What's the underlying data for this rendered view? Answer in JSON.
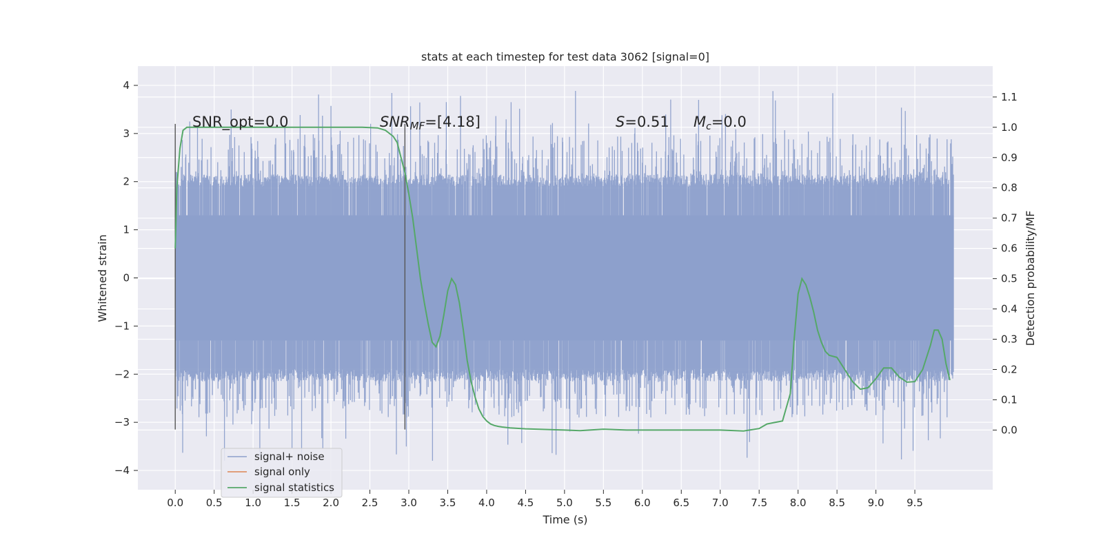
{
  "chart_data": {
    "type": "line",
    "title": "stats at each timestep for test data 3062 [signal=0]",
    "xlabel": "Time (s)",
    "ylabel": "Whitened strain",
    "y2label": "Detection probability/MF",
    "xlim": [
      -0.48,
      10.5
    ],
    "ylim": [
      -4.4,
      4.4
    ],
    "y2lim": [
      -0.197,
      1.202
    ],
    "x_ticks": [
      "0.0",
      "0.5",
      "1.0",
      "1.5",
      "2.0",
      "2.5",
      "3.0",
      "3.5",
      "4.0",
      "4.5",
      "5.0",
      "5.5",
      "6.0",
      "6.5",
      "7.0",
      "7.5",
      "8.0",
      "8.5",
      "9.0",
      "9.5"
    ],
    "y_ticks": [
      "4",
      "3",
      "2",
      "1",
      "0",
      "−1",
      "−2",
      "−3",
      "−4"
    ],
    "y2_ticks": [
      "1.1",
      "1.0",
      "0.9",
      "0.8",
      "0.7",
      "0.6",
      "0.5",
      "0.4",
      "0.3",
      "0.2",
      "0.1",
      "0.0"
    ],
    "grid": true,
    "legend_position": "lower-left",
    "annotations": {
      "snr_opt": "SNR_opt=0.0",
      "snr_mf_italic": "SNR",
      "snr_mf_sub": "MF",
      "snr_mf_value": "=[4.18]",
      "s_italic": "S",
      "s_value": "=0.51",
      "mc_italic": "M",
      "mc_sub": "c",
      "mc_value": "=0.0"
    },
    "markers": {
      "x": [
        0.0,
        2.95
      ],
      "y_range": [
        -3.15,
        3.2
      ]
    },
    "series": [
      {
        "name": "signal+ noise",
        "color": "#8c9fcb",
        "axis": "left",
        "duration": 10.0,
        "sample_rate": 2048,
        "core_band": [
          -1.3,
          1.3
        ],
        "mid_band": [
          -1.9,
          1.9
        ],
        "typical_max": 3.0,
        "extreme_max": 4.05,
        "extreme_min": -3.8
      },
      {
        "name": "signal only",
        "color": "#dd8452",
        "axis": "left",
        "values": []
      },
      {
        "name": "signal statistics",
        "color": "#55a868",
        "axis": "right",
        "x": [
          0.0,
          0.02,
          0.06,
          0.1,
          0.15,
          0.2,
          0.3,
          0.5,
          1.0,
          1.5,
          2.0,
          2.4,
          2.6,
          2.7,
          2.8,
          2.85,
          2.9,
          2.95,
          3.0,
          3.05,
          3.1,
          3.15,
          3.2,
          3.25,
          3.3,
          3.35,
          3.4,
          3.45,
          3.5,
          3.55,
          3.6,
          3.65,
          3.7,
          3.75,
          3.8,
          3.85,
          3.9,
          3.95,
          4.0,
          4.05,
          4.1,
          4.15,
          4.2,
          4.3,
          4.5,
          5.0,
          5.2,
          5.5,
          5.8,
          6.0,
          6.5,
          7.0,
          7.3,
          7.5,
          7.6,
          7.7,
          7.8,
          7.9,
          7.95,
          8.0,
          8.05,
          8.1,
          8.15,
          8.2,
          8.25,
          8.3,
          8.35,
          8.4,
          8.5,
          8.6,
          8.7,
          8.8,
          8.9,
          9.0,
          9.1,
          9.2,
          9.3,
          9.4,
          9.5,
          9.6,
          9.7,
          9.75,
          9.8,
          9.85,
          9.9,
          9.95
        ],
        "values": [
          0.6,
          0.8,
          0.93,
          0.99,
          1.0,
          1.0,
          1.0,
          1.0,
          1.0,
          1.0,
          1.0,
          1.0,
          0.998,
          0.99,
          0.97,
          0.95,
          0.9,
          0.85,
          0.78,
          0.7,
          0.6,
          0.5,
          0.42,
          0.35,
          0.29,
          0.275,
          0.31,
          0.38,
          0.46,
          0.5,
          0.48,
          0.42,
          0.33,
          0.23,
          0.16,
          0.11,
          0.07,
          0.045,
          0.03,
          0.02,
          0.015,
          0.012,
          0.01,
          0.007,
          0.004,
          0.0,
          -0.002,
          0.003,
          0.0,
          0.0,
          0.0,
          0.0,
          -0.003,
          0.005,
          0.02,
          0.025,
          0.03,
          0.12,
          0.3,
          0.45,
          0.5,
          0.48,
          0.44,
          0.39,
          0.33,
          0.29,
          0.26,
          0.247,
          0.24,
          0.2,
          0.16,
          0.135,
          0.14,
          0.17,
          0.205,
          0.205,
          0.175,
          0.158,
          0.16,
          0.2,
          0.28,
          0.33,
          0.33,
          0.3,
          0.22,
          0.165
        ]
      }
    ]
  }
}
